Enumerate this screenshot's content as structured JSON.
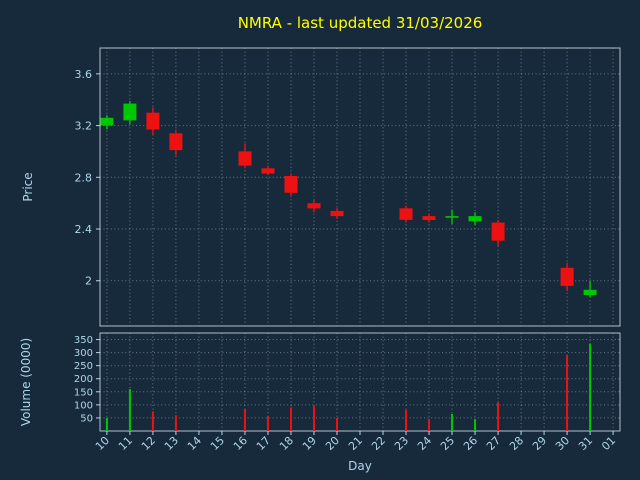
{
  "colors": {
    "background": "#172a3c",
    "title_text": "#ffff00",
    "axis_text": "#aed6e8",
    "grid": "#cfd8e0",
    "spine": "#c4cdd6",
    "up": "#00c800",
    "down": "#ee1111"
  },
  "chart_data": {
    "type": "candlestick",
    "title": "NMRA - last updated 31/03/2026",
    "xlabel": "Day",
    "grid": "dotted",
    "legend": "none",
    "x_labels": [
      "10",
      "11",
      "12",
      "13",
      "14",
      "15",
      "16",
      "17",
      "18",
      "19",
      "20",
      "21",
      "22",
      "23",
      "24",
      "25",
      "26",
      "27",
      "28",
      "29",
      "30",
      "31",
      "01"
    ],
    "price_axis": {
      "label": "Price",
      "ticks": [
        3.6,
        3.2,
        2.8,
        2.4,
        2
      ],
      "ylim": [
        1.65,
        3.8
      ]
    },
    "volume_axis": {
      "label": "Volume (0000)",
      "ticks": [
        350,
        300,
        250,
        200,
        150,
        100,
        50
      ],
      "ylim": [
        0,
        375
      ]
    },
    "candles": [
      {
        "day": "10",
        "open": 3.2,
        "high": 3.28,
        "low": 3.17,
        "close": 3.26,
        "volume": 50
      },
      {
        "day": "11",
        "open": 3.24,
        "high": 3.39,
        "low": 3.21,
        "close": 3.37,
        "volume": 160
      },
      {
        "day": "12",
        "open": 3.3,
        "high": 3.34,
        "low": 3.13,
        "close": 3.17,
        "volume": 75
      },
      {
        "day": "13",
        "open": 3.14,
        "high": 3.17,
        "low": 2.97,
        "close": 3.01,
        "volume": 60
      },
      {
        "day": "16",
        "open": 3.0,
        "high": 3.06,
        "low": 2.87,
        "close": 2.89,
        "volume": 85
      },
      {
        "day": "17",
        "open": 2.87,
        "high": 2.89,
        "low": 2.82,
        "close": 2.83,
        "volume": 55
      },
      {
        "day": "18",
        "open": 2.81,
        "high": 2.83,
        "low": 2.66,
        "close": 2.68,
        "volume": 90
      },
      {
        "day": "19",
        "open": 2.6,
        "high": 2.63,
        "low": 2.53,
        "close": 2.56,
        "volume": 95
      },
      {
        "day": "20",
        "open": 2.54,
        "high": 2.56,
        "low": 2.48,
        "close": 2.5,
        "volume": 50
      },
      {
        "day": "23",
        "open": 2.56,
        "high": 2.58,
        "low": 2.45,
        "close": 2.47,
        "volume": 80
      },
      {
        "day": "24",
        "open": 2.5,
        "high": 2.52,
        "low": 2.45,
        "close": 2.47,
        "volume": 45
      },
      {
        "day": "25",
        "open": 2.49,
        "high": 2.55,
        "low": 2.44,
        "close": 2.5,
        "volume": 65
      },
      {
        "day": "26",
        "open": 2.46,
        "high": 2.53,
        "low": 2.43,
        "close": 2.5,
        "volume": 45
      },
      {
        "day": "27",
        "open": 2.45,
        "high": 2.47,
        "low": 2.27,
        "close": 2.31,
        "volume": 110
      },
      {
        "day": "30",
        "open": 2.1,
        "high": 2.14,
        "low": 1.92,
        "close": 1.96,
        "volume": 290
      },
      {
        "day": "31",
        "open": 1.89,
        "high": 2.0,
        "low": 1.87,
        "close": 1.93,
        "volume": 335
      }
    ]
  }
}
